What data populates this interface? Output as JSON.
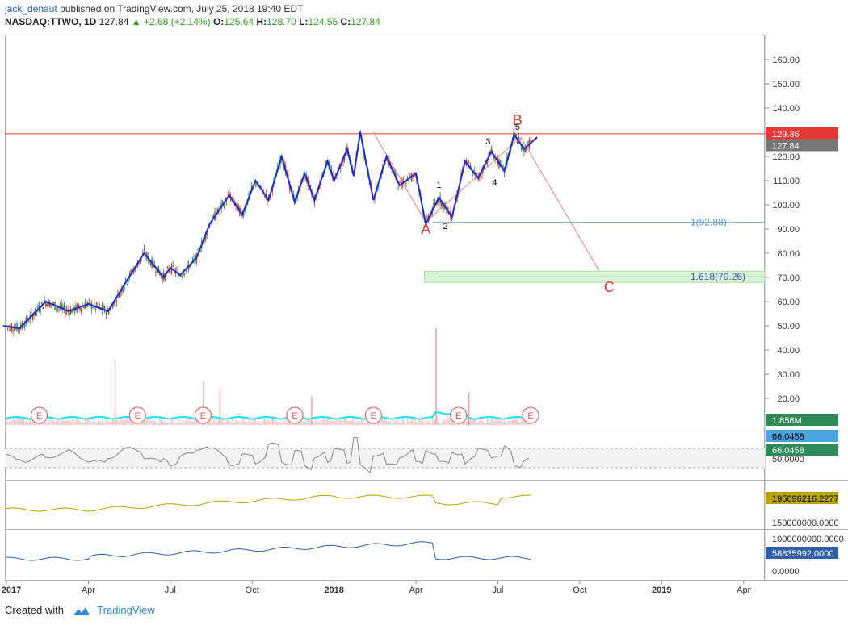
{
  "header": {
    "author": "jack_denaut",
    "published": "published on TradingView.com, July 25, 2018 19:40 EDT",
    "symbol": "NASDAQ:TTWO, 1D",
    "last": "127.84",
    "change": "+2.68 (+2.14%)",
    "o_label": "O:",
    "o": "125.64",
    "h_label": "H:",
    "h": "128.70",
    "l_label": "L:",
    "l": "124.55",
    "c_label": "C:",
    "c": "127.84"
  },
  "footer": {
    "created": "Created with",
    "brand": "TradingView"
  },
  "colors": {
    "wave": "#1f2ccc",
    "red": "#e53935",
    "fib": "#5b9bd5",
    "axis": "#555555",
    "volume": "#18e3f0",
    "rsi": "#888888"
  },
  "chart_data": {
    "type": "line",
    "title": "NASDAQ:TTWO, 1D",
    "x_tick_labels": [
      "2017",
      "Apr",
      "Jul",
      "Oct",
      "2018",
      "Apr",
      "Jul",
      "Oct",
      "2019",
      "Apr"
    ],
    "price_axis": {
      "ylim": [
        15,
        165
      ],
      "ticks": [
        "160.00",
        "150.00",
        "140.00",
        "130.00",
        "120.00",
        "110.00",
        "100.00",
        "90.00",
        "80.00",
        "70.00",
        "60.00",
        "50.00",
        "40.00",
        "30.00",
        "20.00"
      ]
    },
    "wave_path": {
      "x": [
        2016.99,
        2017.04,
        2017.12,
        2017.19,
        2017.25,
        2017.31,
        2017.36,
        2017.42,
        2017.48,
        2017.5,
        2017.53,
        2017.58,
        2017.62,
        2017.68,
        2017.72,
        2017.76,
        2017.8,
        2017.84,
        2017.88,
        2017.91,
        2017.94,
        2017.98,
        2018.0,
        2018.04,
        2018.06,
        2018.08,
        2018.12,
        2018.16,
        2018.2,
        2018.25,
        2018.28,
        2018.32,
        2018.36,
        2018.4,
        2018.44,
        2018.48,
        2018.52,
        2018.55,
        2018.58,
        2018.62
      ],
      "y": [
        50,
        49,
        60,
        56,
        59,
        56,
        67,
        80,
        70,
        74,
        71,
        78,
        92,
        104,
        96,
        110,
        102,
        120,
        101,
        113,
        102,
        118,
        110,
        123,
        112,
        130,
        102,
        120,
        108,
        113,
        92,
        103,
        95,
        118,
        111,
        122,
        114,
        129,
        123,
        128
      ]
    },
    "price_lines": [
      {
        "label": "129.36",
        "value": 129.36,
        "color": "#e53935"
      },
      {
        "label": "127.84",
        "value": 127.84,
        "color": "#777777"
      }
    ],
    "fib_levels": [
      {
        "label": "1(92.88)",
        "value": 92.88
      },
      {
        "label": "1.618(70.26)",
        "value": 70.26
      }
    ],
    "wave_labels": [
      {
        "text": "A",
        "x": 2018.28,
        "y": 88,
        "color": "#e53935"
      },
      {
        "text": "B",
        "x": 2018.56,
        "y": 133,
        "color": "#e53935"
      },
      {
        "text": "C",
        "x": 2018.84,
        "y": 64,
        "color": "#e53935"
      },
      {
        "text": "1",
        "x": 2018.32,
        "y": 107,
        "color": "#000000"
      },
      {
        "text": "2",
        "x": 2018.34,
        "y": 90,
        "color": "#000000"
      },
      {
        "text": "3",
        "x": 2018.47,
        "y": 125,
        "color": "#000000"
      },
      {
        "text": "4",
        "x": 2018.49,
        "y": 108,
        "color": "#000000"
      },
      {
        "text": "5",
        "x": 2018.56,
        "y": 131,
        "color": "#000000"
      }
    ],
    "abc_projection": {
      "x": [
        2018.57,
        2018.82
      ],
      "y": [
        128,
        70.26
      ]
    },
    "earnings_markers": {
      "label": "E",
      "x": [
        2017.1,
        2017.4,
        2017.6,
        2017.88,
        2018.12,
        2018.38,
        2018.6
      ]
    },
    "volume": {
      "label": "1.858M"
    },
    "rsi": {
      "labels": [
        "66.0458",
        "66.0458"
      ],
      "tick": "50.0000"
    },
    "indicator2": {
      "label": "195096216.2277",
      "tick": "150000000.0000"
    },
    "indicator3": {
      "label": "58835992.0000",
      "ticks": [
        "1000000000.0000",
        "0.0000"
      ]
    }
  }
}
